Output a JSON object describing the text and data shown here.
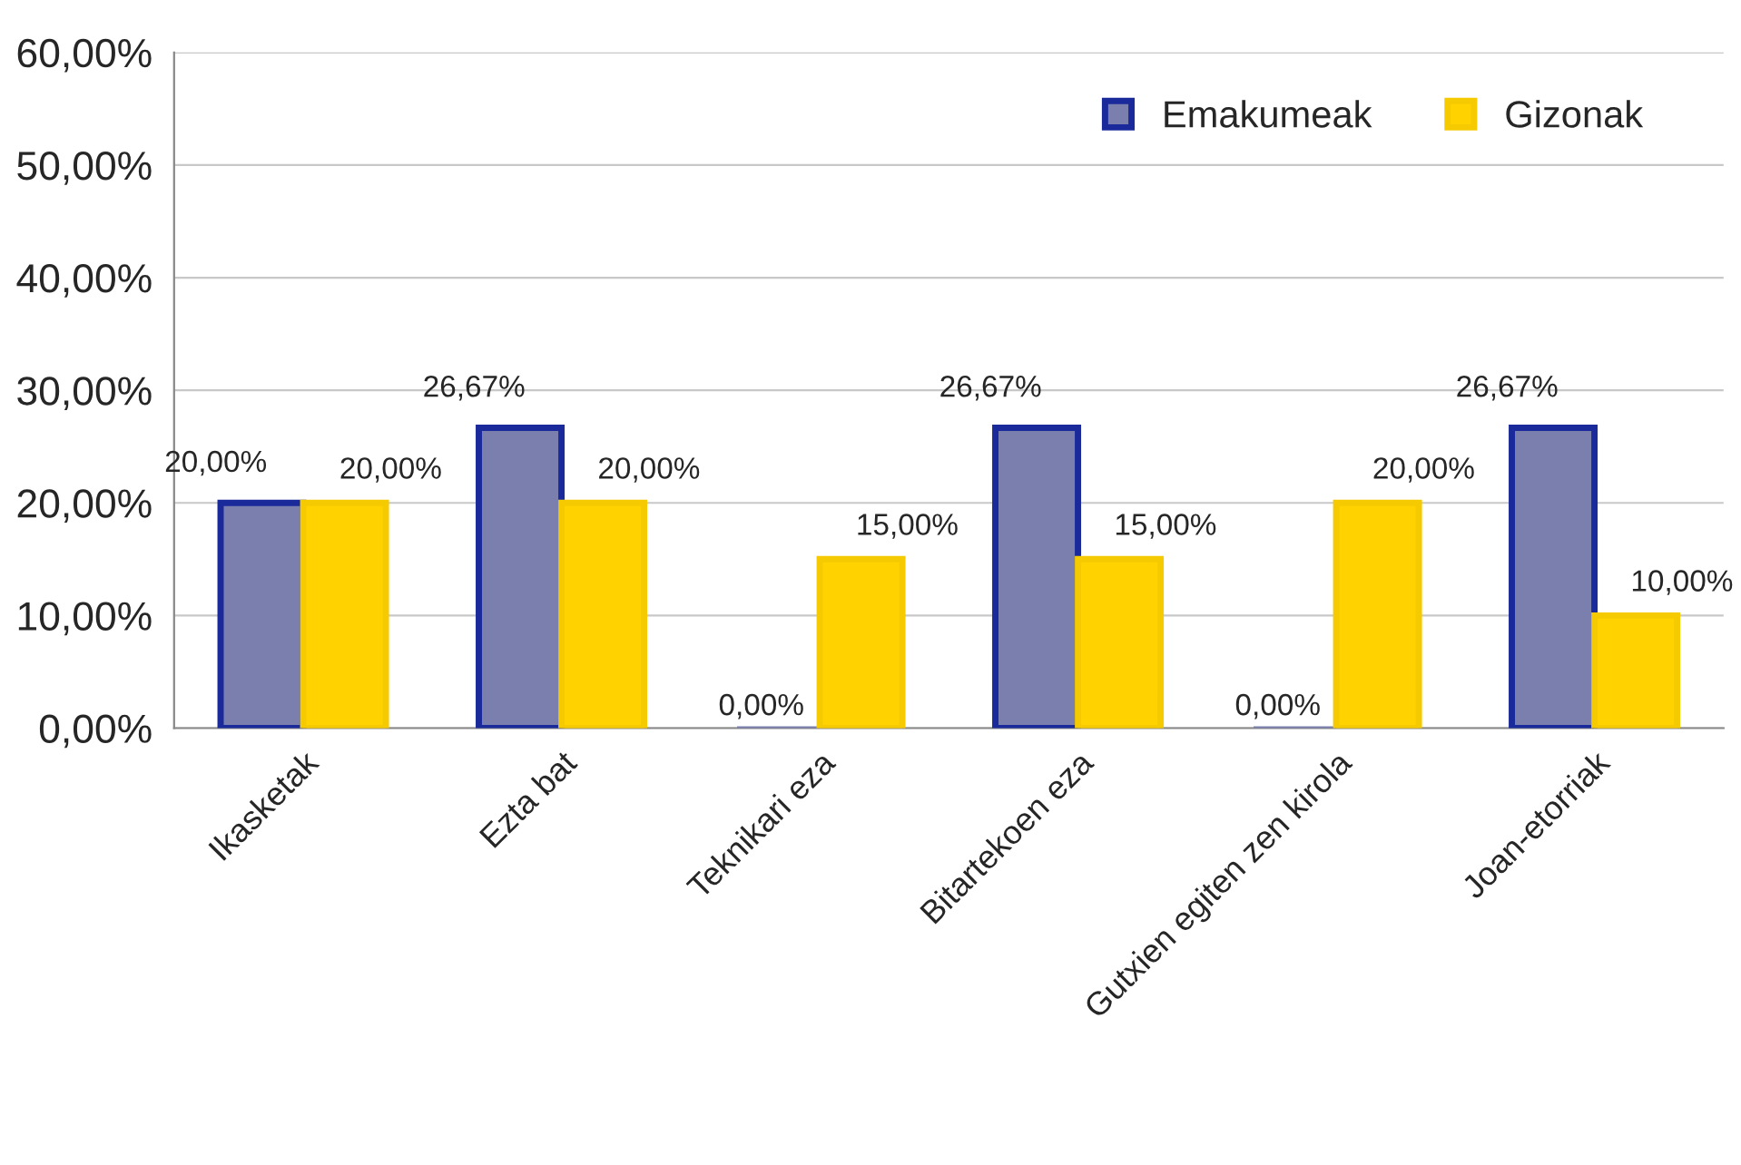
{
  "chart_data": {
    "type": "bar",
    "categories": [
      "Ikasketak",
      "Ezta bat",
      "Teknikari eza",
      "Bitartekoen eza",
      "Gutxien egiten zen kirola",
      "Joan-etorriak"
    ],
    "series": [
      {
        "name": "Emakumeak",
        "color": "#7b7fad",
        "values": [
          20,
          26.67,
          0,
          26.67,
          0,
          26.67
        ],
        "value_labels": [
          "20,00%",
          "26,67%",
          "0,00%",
          "26,67%",
          "0,00%",
          "26,67%"
        ]
      },
      {
        "name": "Gizonak",
        "color": "#ffd200",
        "values": [
          20,
          20,
          15,
          15,
          20,
          10
        ],
        "value_labels": [
          "20,00%",
          "20,00%",
          "15,00%",
          "15,00%",
          "20,00%",
          "10,00%"
        ]
      }
    ],
    "ylim": [
      0,
      60
    ],
    "yticks": [
      {
        "value": 0,
        "label": "0,00%"
      },
      {
        "value": 10,
        "label": "10,00%"
      },
      {
        "value": 20,
        "label": "20,00%"
      },
      {
        "value": 30,
        "label": "30,00%"
      },
      {
        "value": 40,
        "label": "40,00%"
      },
      {
        "value": 50,
        "label": "50,00%"
      },
      {
        "value": 60,
        "label": "60,00%"
      }
    ],
    "grid": "y",
    "legend": "top right"
  }
}
